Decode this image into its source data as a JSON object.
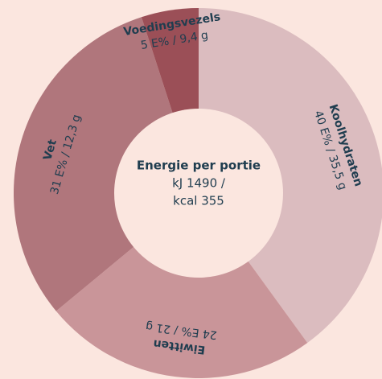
{
  "chart_data": {
    "type": "donut",
    "categories": [
      "Koolhydraten",
      "Eiwitten",
      "Vet",
      "Voedingsvezels"
    ],
    "values": [
      40,
      24,
      31,
      5
    ],
    "value_labels": [
      "40 E% / 35,5 g",
      "24 E% / 21 g",
      "31 E% / 12,3 g",
      "5 E% / 9,4 g"
    ],
    "colors": [
      "#dbbcbf",
      "#c99599",
      "#b0767c",
      "#9b4f57"
    ],
    "center_label": [
      "Energie per portie",
      "kJ 1490 /",
      "kcal 355"
    ]
  }
}
